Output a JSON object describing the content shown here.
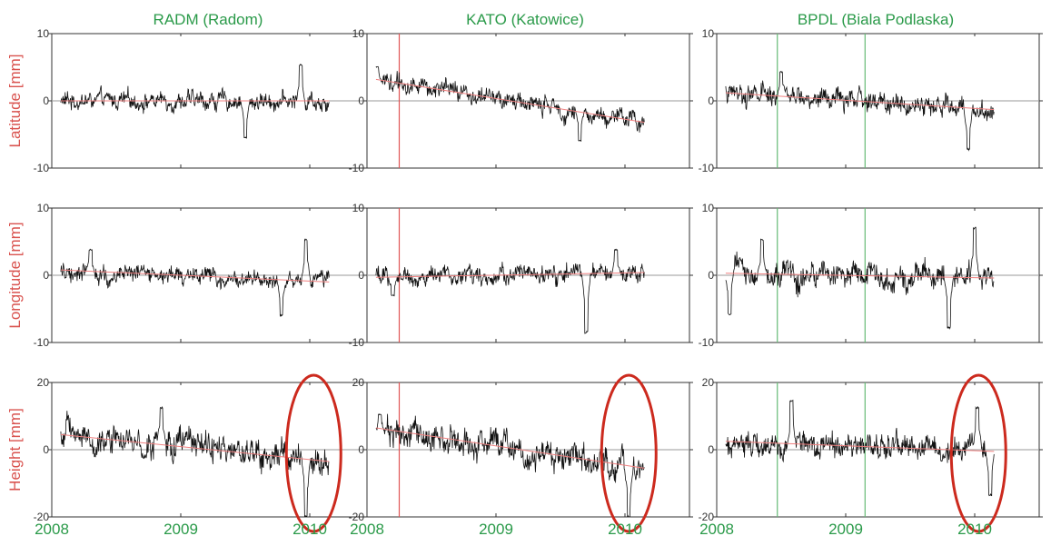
{
  "figure": {
    "stations": [
      "RADM (Radom)",
      "KATO (Katowice)",
      "BPDL (Biala Podlaska)"
    ],
    "components": [
      "Latitude [mm]",
      "Longitude [mm]",
      "Height [mm]"
    ],
    "year_labels": [
      "2008",
      "2009",
      "2010"
    ]
  },
  "colors": {
    "station_title": "#2a9a49",
    "axis_label": "#d9534f",
    "series": "#111111",
    "trend": "#f08080",
    "red_event_line": "#e05555",
    "green_event_line": "#66bb77",
    "ellipse": "#cc2a1e",
    "zero_line": "#9a9a9a",
    "frame": "#333333"
  },
  "chart_data": [
    {
      "type": "line",
      "station": "RADM (Radom)",
      "component": "Latitude",
      "xlim": [
        2008.0,
        2010.5
      ],
      "ylim": [
        -10,
        10
      ],
      "yticks": [
        -10,
        0,
        10
      ],
      "x_start": 2008.07,
      "x_end": 2010.15,
      "trend": {
        "x": [
          2008.07,
          2010.15
        ],
        "y": [
          0.0,
          0.0
        ]
      },
      "noise_amp": 1.2,
      "extremes": [
        {
          "x": 2009.5,
          "y": -5.5
        },
        {
          "x": 2009.93,
          "y": 5.3
        }
      ],
      "event_lines": [],
      "highlight": false
    },
    {
      "type": "line",
      "station": "KATO (Katowice)",
      "component": "Latitude",
      "xlim": [
        2008.0,
        2010.5
      ],
      "ylim": [
        -10,
        10
      ],
      "yticks": [
        -10,
        0,
        10
      ],
      "x_start": 2008.07,
      "x_end": 2010.15,
      "trend": {
        "x": [
          2008.07,
          2010.15
        ],
        "y": [
          3.2,
          -3.2
        ]
      },
      "noise_amp": 1.3,
      "extremes": [
        {
          "x": 2008.08,
          "y": 5.0
        },
        {
          "x": 2009.65,
          "y": -6.0
        }
      ],
      "event_lines": [
        {
          "x": 2008.25,
          "color": "red"
        }
      ],
      "highlight": false
    },
    {
      "type": "line",
      "station": "BPDL (Biala Podlaska)",
      "component": "Latitude",
      "xlim": [
        2008.0,
        2010.5
      ],
      "ylim": [
        -10,
        10
      ],
      "yticks": [
        -10,
        0,
        10
      ],
      "x_start": 2008.07,
      "x_end": 2010.15,
      "trend": {
        "x": [
          2008.07,
          2010.15
        ],
        "y": [
          1.2,
          -1.3
        ]
      },
      "noise_amp": 1.4,
      "extremes": [
        {
          "x": 2008.5,
          "y": 4.3
        },
        {
          "x": 2009.95,
          "y": -7.2
        }
      ],
      "event_lines": [
        {
          "x": 2008.47,
          "color": "green"
        },
        {
          "x": 2009.15,
          "color": "green"
        }
      ],
      "highlight": false
    },
    {
      "type": "line",
      "station": "RADM (Radom)",
      "component": "Longitude",
      "xlim": [
        2008.0,
        2010.5
      ],
      "ylim": [
        -10,
        10
      ],
      "yticks": [
        -10,
        0,
        10
      ],
      "x_start": 2008.07,
      "x_end": 2010.15,
      "trend": {
        "x": [
          2008.07,
          2010.15
        ],
        "y": [
          0.8,
          -1.0
        ]
      },
      "noise_amp": 1.2,
      "extremes": [
        {
          "x": 2008.3,
          "y": 3.8
        },
        {
          "x": 2009.78,
          "y": -6.0
        },
        {
          "x": 2009.97,
          "y": 5.3
        }
      ],
      "event_lines": [],
      "highlight": false
    },
    {
      "type": "line",
      "station": "KATO (Katowice)",
      "component": "Longitude",
      "xlim": [
        2008.0,
        2010.5
      ],
      "ylim": [
        -10,
        10
      ],
      "yticks": [
        -10,
        0,
        10
      ],
      "x_start": 2008.07,
      "x_end": 2010.15,
      "trend": {
        "x": [
          2008.07,
          2010.15
        ],
        "y": [
          -0.3,
          0.4
        ]
      },
      "noise_amp": 1.3,
      "extremes": [
        {
          "x": 2008.2,
          "y": -3.0
        },
        {
          "x": 2009.7,
          "y": -8.5
        },
        {
          "x": 2009.93,
          "y": 3.8
        }
      ],
      "event_lines": [
        {
          "x": 2008.25,
          "color": "red"
        }
      ],
      "highlight": false
    },
    {
      "type": "line",
      "station": "BPDL (Biala Podlaska)",
      "component": "Longitude",
      "xlim": [
        2008.0,
        2010.5
      ],
      "ylim": [
        -10,
        10
      ],
      "yticks": [
        -10,
        0,
        10
      ],
      "x_start": 2008.07,
      "x_end": 2010.15,
      "trend": {
        "x": [
          2008.07,
          2010.15
        ],
        "y": [
          0.3,
          -0.4
        ]
      },
      "noise_amp": 1.8,
      "extremes": [
        {
          "x": 2008.1,
          "y": -5.8
        },
        {
          "x": 2008.35,
          "y": 5.3
        },
        {
          "x": 2009.8,
          "y": -7.8
        },
        {
          "x": 2010.0,
          "y": 7.0
        }
      ],
      "event_lines": [
        {
          "x": 2008.47,
          "color": "green"
        },
        {
          "x": 2009.15,
          "color": "green"
        }
      ],
      "highlight": false
    },
    {
      "type": "line",
      "station": "RADM (Radom)",
      "component": "Height",
      "xlim": [
        2008.0,
        2010.5
      ],
      "ylim": [
        -20,
        20
      ],
      "yticks": [
        -20,
        0,
        20
      ],
      "x_start": 2008.07,
      "x_end": 2010.15,
      "trend": {
        "x": [
          2008.07,
          2010.15
        ],
        "y": [
          4.5,
          -3.5
        ]
      },
      "noise_amp": 4.0,
      "extremes": [
        {
          "x": 2008.85,
          "y": 12.5
        },
        {
          "x": 2009.97,
          "y": -20.0
        }
      ],
      "event_lines": [],
      "highlight": true
    },
    {
      "type": "line",
      "station": "KATO (Katowice)",
      "component": "Height",
      "xlim": [
        2008.0,
        2010.5
      ],
      "ylim": [
        -20,
        20
      ],
      "yticks": [
        -20,
        0,
        20
      ],
      "x_start": 2008.07,
      "x_end": 2010.15,
      "trend": {
        "x": [
          2008.07,
          2010.15
        ],
        "y": [
          6.5,
          -5.5
        ]
      },
      "noise_amp": 4.0,
      "extremes": [
        {
          "x": 2008.1,
          "y": 10.5
        },
        {
          "x": 2010.03,
          "y": -20.0
        }
      ],
      "event_lines": [
        {
          "x": 2008.25,
          "color": "red"
        }
      ],
      "highlight": true
    },
    {
      "type": "line",
      "station": "BPDL (Biala Podlaska)",
      "component": "Height",
      "xlim": [
        2008.0,
        2010.5
      ],
      "ylim": [
        -20,
        20
      ],
      "yticks": [
        -20,
        0,
        20
      ],
      "x_start": 2008.07,
      "x_end": 2010.15,
      "trend": {
        "x": [
          2008.07,
          2010.15
        ],
        "y": [
          2.5,
          -0.5
        ]
      },
      "noise_amp": 3.3,
      "extremes": [
        {
          "x": 2008.58,
          "y": 14.5
        },
        {
          "x": 2010.02,
          "y": 12.5
        },
        {
          "x": 2010.12,
          "y": -13.5
        }
      ],
      "event_lines": [
        {
          "x": 2008.47,
          "color": "green"
        },
        {
          "x": 2009.15,
          "color": "green"
        }
      ],
      "highlight": true
    }
  ]
}
